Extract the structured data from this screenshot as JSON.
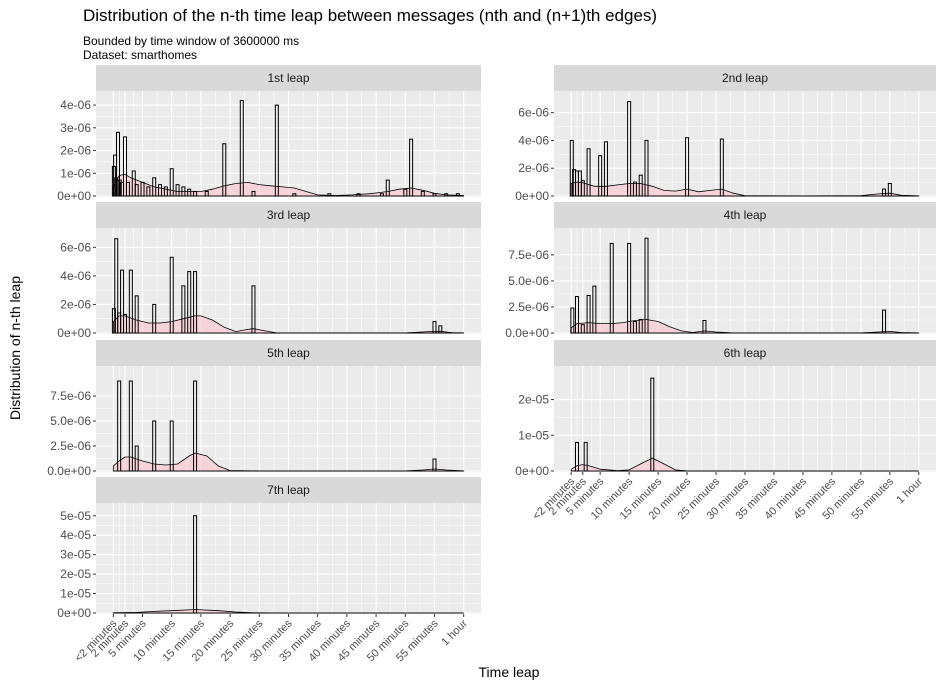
{
  "title": "Distribution of the n-th time leap between messages (nth and (n+1)th edges)",
  "subtitle_line1": "Bounded by time window of 3600000 ms",
  "subtitle_line2": "Dataset: smarthomes",
  "chart_data": {
    "type": "histogram",
    "xlabel": "Time leap",
    "ylabel": "Distribution of n-th leap",
    "x_unit": "minutes",
    "xlim": [
      0,
      60
    ],
    "x_ticks": [
      {
        "label": "<2 minutes",
        "value": 0
      },
      {
        "label": "2 minutes",
        "value": 2
      },
      {
        "label": "5 minutes",
        "value": 5
      },
      {
        "label": "10 minutes",
        "value": 10
      },
      {
        "label": "15 minutes",
        "value": 15
      },
      {
        "label": "20 minutes",
        "value": 20
      },
      {
        "label": "25 minutes",
        "value": 25
      },
      {
        "label": "30 minutes",
        "value": 30
      },
      {
        "label": "35 minutes",
        "value": 35
      },
      {
        "label": "40 minutes",
        "value": 40
      },
      {
        "label": "45 minutes",
        "value": 45
      },
      {
        "label": "50 minutes",
        "value": 50
      },
      {
        "label": "55 minutes",
        "value": 55
      },
      {
        "label": "1 hour",
        "value": 60
      }
    ],
    "colors": {
      "bar_stroke": "#000000",
      "density_fill": "#ffc0cb",
      "panel_bg": "#ebebeb",
      "strip_bg": "#d9d9d9",
      "grid": "#ffffff"
    },
    "panels": [
      {
        "label": "1st leap",
        "ylim": [
          0,
          4.4e-06
        ],
        "y_ticks": [
          {
            "v": 0,
            "label": "0e+00"
          },
          {
            "v": 1e-06,
            "label": "1e-06"
          },
          {
            "v": 2e-06,
            "label": "2e-06"
          },
          {
            "v": 3e-06,
            "label": "3e-06"
          },
          {
            "v": 4e-06,
            "label": "4e-06"
          }
        ],
        "bars": [
          [
            0.1,
            1.3e-06
          ],
          [
            0.3,
            1.8e-06
          ],
          [
            0.5,
            8e-07
          ],
          [
            0.8,
            2.8e-06
          ],
          [
            1.1,
            7e-07
          ],
          [
            1.5,
            6e-07
          ],
          [
            2,
            2.6e-06
          ],
          [
            2.5,
            6e-07
          ],
          [
            3.5,
            1.1e-06
          ],
          [
            4,
            5e-07
          ],
          [
            5,
            6e-07
          ],
          [
            6,
            4e-07
          ],
          [
            7,
            8e-07
          ],
          [
            8,
            5e-07
          ],
          [
            9,
            4e-07
          ],
          [
            10,
            1.2e-06
          ],
          [
            11,
            5e-07
          ],
          [
            12,
            4e-07
          ],
          [
            13,
            3e-07
          ],
          [
            14,
            2e-07
          ],
          [
            16,
            2e-07
          ],
          [
            19,
            2.3e-06
          ],
          [
            22,
            4.2e-06
          ],
          [
            24,
            2e-07
          ],
          [
            28,
            4e-06
          ],
          [
            31,
            1e-07
          ],
          [
            37,
            1e-07
          ],
          [
            42,
            1e-07
          ],
          [
            46,
            1e-07
          ],
          [
            47,
            7e-07
          ],
          [
            50,
            3e-07
          ],
          [
            51,
            2.5e-06
          ],
          [
            53,
            2e-07
          ],
          [
            55,
            1e-07
          ],
          [
            57,
            1e-07
          ],
          [
            59,
            1e-07
          ]
        ],
        "density": [
          [
            0,
            4e-07
          ],
          [
            1,
            9e-07
          ],
          [
            2,
            9.5e-07
          ],
          [
            3,
            8e-07
          ],
          [
            5,
            6e-07
          ],
          [
            7,
            4e-07
          ],
          [
            9,
            3e-07
          ],
          [
            11,
            2e-07
          ],
          [
            13,
            2e-07
          ],
          [
            15,
            2e-07
          ],
          [
            17,
            3e-07
          ],
          [
            19,
            4.5e-07
          ],
          [
            21,
            5.5e-07
          ],
          [
            23,
            6e-07
          ],
          [
            25,
            5e-07
          ],
          [
            27,
            4.5e-07
          ],
          [
            29,
            4e-07
          ],
          [
            31,
            3.5e-07
          ],
          [
            33,
            2e-07
          ],
          [
            35,
            5e-08
          ],
          [
            38,
            2e-08
          ],
          [
            41,
            5e-08
          ],
          [
            44,
            1e-07
          ],
          [
            47,
            2e-07
          ],
          [
            49,
            3e-07
          ],
          [
            51,
            3.5e-07
          ],
          [
            53,
            2.5e-07
          ],
          [
            55,
            1.2e-07
          ],
          [
            57,
            5e-08
          ],
          [
            60,
            2e-08
          ]
        ]
      },
      {
        "label": "2nd leap",
        "ylim": [
          0,
          7.2e-06
        ],
        "y_ticks": [
          {
            "v": 0,
            "label": "0e+00"
          },
          {
            "v": 2e-06,
            "label": "2e-06"
          },
          {
            "v": 4e-06,
            "label": "4e-06"
          },
          {
            "v": 6e-06,
            "label": "6e-06"
          }
        ],
        "bars": [
          [
            0.1,
            4e-06
          ],
          [
            0.5,
            1.9e-06
          ],
          [
            1,
            1.8e-06
          ],
          [
            1.5,
            1.8e-06
          ],
          [
            2,
            1.1e-06
          ],
          [
            3,
            3.4e-06
          ],
          [
            5,
            2.9e-06
          ],
          [
            6,
            3.9e-06
          ],
          [
            10,
            6.8e-06
          ],
          [
            11,
            1e-06
          ],
          [
            12,
            1.5e-06
          ],
          [
            13,
            4e-06
          ],
          [
            20,
            4.2e-06
          ],
          [
            26,
            4.1e-06
          ],
          [
            54,
            5e-07
          ],
          [
            55,
            9e-07
          ]
        ],
        "density": [
          [
            0,
            9e-07
          ],
          [
            1,
            1e-06
          ],
          [
            2,
            9.5e-07
          ],
          [
            4,
            7e-07
          ],
          [
            6,
            7e-07
          ],
          [
            8,
            8e-07
          ],
          [
            10,
            9e-07
          ],
          [
            12,
            9e-07
          ],
          [
            14,
            7e-07
          ],
          [
            16,
            4e-07
          ],
          [
            18,
            3.5e-07
          ],
          [
            20,
            5e-07
          ],
          [
            22,
            3e-07
          ],
          [
            24,
            4e-07
          ],
          [
            26,
            5e-07
          ],
          [
            28,
            2e-07
          ],
          [
            30,
            2e-08
          ],
          [
            40,
            1e-08
          ],
          [
            50,
            2e-08
          ],
          [
            53,
            1.5e-07
          ],
          [
            55,
            2e-07
          ],
          [
            57,
            5e-08
          ],
          [
            60,
            1e-08
          ]
        ]
      },
      {
        "label": "3rd leap",
        "ylim": [
          0,
          7e-06
        ],
        "y_ticks": [
          {
            "v": 0,
            "label": "0e+00"
          },
          {
            "v": 2e-06,
            "label": "2e-06"
          },
          {
            "v": 4e-06,
            "label": "4e-06"
          },
          {
            "v": 6e-06,
            "label": "6e-06"
          }
        ],
        "bars": [
          [
            0.1,
            1.7e-06
          ],
          [
            0.5,
            6.6e-06
          ],
          [
            1,
            1.4e-06
          ],
          [
            1.5,
            4.4e-06
          ],
          [
            2,
            1.3e-06
          ],
          [
            3,
            4.4e-06
          ],
          [
            4,
            2.6e-06
          ],
          [
            7,
            2e-06
          ],
          [
            10,
            5.3e-06
          ],
          [
            12,
            3.3e-06
          ],
          [
            13,
            4.3e-06
          ],
          [
            14,
            4.3e-06
          ],
          [
            24,
            3.3e-06
          ],
          [
            55,
            8e-07
          ],
          [
            56,
            5e-07
          ]
        ],
        "density": [
          [
            0,
            8e-07
          ],
          [
            1,
            1.2e-06
          ],
          [
            2,
            1.2e-06
          ],
          [
            4,
            9e-07
          ],
          [
            6,
            7e-07
          ],
          [
            8,
            7e-07
          ],
          [
            10,
            8e-07
          ],
          [
            12,
            1e-06
          ],
          [
            14,
            1.2e-06
          ],
          [
            15,
            1.2e-06
          ],
          [
            17,
            9e-07
          ],
          [
            19,
            4e-07
          ],
          [
            21,
            1e-07
          ],
          [
            23,
            2.5e-07
          ],
          [
            24,
            3e-07
          ],
          [
            26,
            1.5e-07
          ],
          [
            28,
            1e-08
          ],
          [
            50,
            1e-08
          ],
          [
            54,
            1e-07
          ],
          [
            56,
            1.2e-07
          ],
          [
            58,
            2e-08
          ],
          [
            60,
            1e-08
          ]
        ]
      },
      {
        "label": "4th leap",
        "ylim": [
          0,
          9.6e-06
        ],
        "y_ticks": [
          {
            "v": 0,
            "label": "0.0e+00"
          },
          {
            "v": 2.5e-06,
            "label": "2.5e-06"
          },
          {
            "v": 5e-06,
            "label": "5.0e-06"
          },
          {
            "v": 7.5e-06,
            "label": "7.5e-06"
          }
        ],
        "bars": [
          [
            0.2,
            2.4e-06
          ],
          [
            1,
            3.5e-06
          ],
          [
            2,
            8e-07
          ],
          [
            3,
            3.6e-06
          ],
          [
            4,
            4.5e-06
          ],
          [
            7,
            8.6e-06
          ],
          [
            10,
            8.6e-06
          ],
          [
            11,
            1.1e-06
          ],
          [
            12,
            1.3e-06
          ],
          [
            13,
            9.1e-06
          ],
          [
            23,
            1.2e-06
          ],
          [
            54,
            2.2e-06
          ]
        ],
        "density": [
          [
            0,
            5e-07
          ],
          [
            1,
            9e-07
          ],
          [
            3,
            1e-06
          ],
          [
            5,
            9e-07
          ],
          [
            7,
            9e-07
          ],
          [
            9,
            1e-06
          ],
          [
            11,
            1.2e-06
          ],
          [
            13,
            1.3e-06
          ],
          [
            15,
            1.1e-06
          ],
          [
            17,
            6e-07
          ],
          [
            19,
            2e-07
          ],
          [
            21,
            5e-08
          ],
          [
            23,
            2e-07
          ],
          [
            25,
            1e-07
          ],
          [
            28,
            1e-08
          ],
          [
            50,
            1e-08
          ],
          [
            53,
            1e-07
          ],
          [
            55,
            1.5e-07
          ],
          [
            57,
            5e-08
          ],
          [
            60,
            1e-08
          ]
        ]
      },
      {
        "label": "5th leap",
        "ylim": [
          0,
          1e-05
        ],
        "y_ticks": [
          {
            "v": 0,
            "label": "0.0e+00"
          },
          {
            "v": 2.5e-06,
            "label": "2.5e-06"
          },
          {
            "v": 5e-06,
            "label": "5.0e-06"
          },
          {
            "v": 7.5e-06,
            "label": "7.5e-06"
          }
        ],
        "bars": [
          [
            1,
            9e-06
          ],
          [
            3,
            9e-06
          ],
          [
            4,
            2.5e-06
          ],
          [
            7,
            5e-06
          ],
          [
            10,
            5e-06
          ],
          [
            14,
            9e-06
          ],
          [
            55,
            1.2e-06
          ]
        ],
        "density": [
          [
            0,
            5e-07
          ],
          [
            1,
            1e-06
          ],
          [
            2,
            1.4e-06
          ],
          [
            3,
            1.4e-06
          ],
          [
            5,
            1e-06
          ],
          [
            7,
            7e-07
          ],
          [
            9,
            6e-07
          ],
          [
            11,
            7e-07
          ],
          [
            13,
            1.5e-06
          ],
          [
            14,
            1.8e-06
          ],
          [
            16,
            1.5e-06
          ],
          [
            18,
            5e-07
          ],
          [
            20,
            5e-08
          ],
          [
            25,
            1e-08
          ],
          [
            50,
            1e-08
          ],
          [
            53,
            1e-07
          ],
          [
            55,
            2e-07
          ],
          [
            57,
            1e-07
          ],
          [
            60,
            1e-08
          ]
        ]
      },
      {
        "label": "6th leap",
        "ylim": [
          0,
          2.8e-05
        ],
        "y_ticks": [
          {
            "v": 0,
            "label": "0e+00"
          },
          {
            "v": 1e-05,
            "label": "1e-05"
          },
          {
            "v": 2e-05,
            "label": "2e-05"
          }
        ],
        "bars": [
          [
            1,
            8e-06
          ],
          [
            2.5,
            8e-06
          ],
          [
            14,
            2.6e-05
          ]
        ],
        "density": [
          [
            0,
            5e-07
          ],
          [
            1,
            1.5e-06
          ],
          [
            2,
            1.8e-06
          ],
          [
            3,
            1.5e-06
          ],
          [
            5,
            5e-07
          ],
          [
            8,
            1e-07
          ],
          [
            10,
            3e-07
          ],
          [
            12,
            2e-06
          ],
          [
            14,
            3.6e-06
          ],
          [
            16,
            2e-06
          ],
          [
            18,
            3e-07
          ],
          [
            20,
            2e-08
          ],
          [
            60,
            0.0
          ]
        ]
      },
      {
        "label": "7th leap",
        "ylim": [
          0,
          5.4e-05
        ],
        "y_ticks": [
          {
            "v": 0,
            "label": "0e+00"
          },
          {
            "v": 1e-05,
            "label": "1e-05"
          },
          {
            "v": 2e-05,
            "label": "2e-05"
          },
          {
            "v": 3e-05,
            "label": "3e-05"
          },
          {
            "v": 4e-05,
            "label": "4e-05"
          },
          {
            "v": 5e-05,
            "label": "5e-05"
          }
        ],
        "bars": [
          [
            14,
            5e-05
          ]
        ],
        "density": [
          [
            0,
            1e-07
          ],
          [
            4,
            3e-07
          ],
          [
            7,
            8e-07
          ],
          [
            10,
            1.2e-06
          ],
          [
            14,
            1.8e-06
          ],
          [
            18,
            1.2e-06
          ],
          [
            21,
            5e-07
          ],
          [
            24,
            1e-07
          ],
          [
            30,
            1e-08
          ],
          [
            60,
            0.0
          ]
        ]
      }
    ]
  }
}
